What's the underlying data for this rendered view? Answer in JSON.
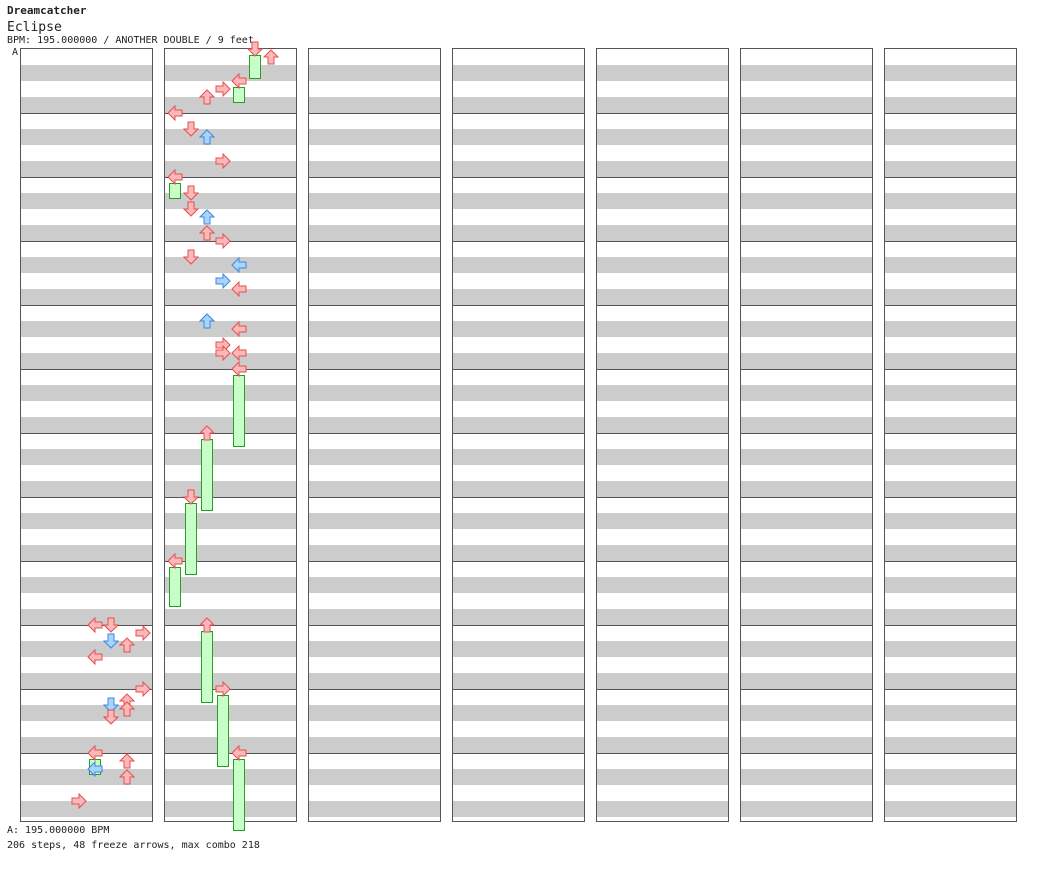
{
  "header": {
    "artist": "Dreamcatcher",
    "title": "Eclipse",
    "info": "BPM: 195.000000 / ANOTHER DOUBLE / 9 feet"
  },
  "section_marker": "A",
  "footer": {
    "bpm_line": "A: 195.000000 BPM",
    "stats_line": "206 steps, 48 freeze arrows, max combo 218"
  },
  "colors": {
    "red_fill": "#ffb8b8",
    "red_stroke": "#e05050",
    "blue_fill": "#a8d4ff",
    "blue_stroke": "#3a88d8",
    "freeze_fill": "#c8ffc8",
    "freeze_stroke": "#2a9a2a",
    "stripe": "#cccccc",
    "border": "#555555"
  },
  "icons": {
    "arrow": "direction-arrow-icon",
    "freeze": "freeze-arrow-icon"
  },
  "chart_data": {
    "type": "step-chart",
    "mode": "ANOTHER DOUBLE",
    "lanes": [
      "P1-left",
      "P1-down",
      "P1-up",
      "P1-right",
      "P2-left",
      "P2-down",
      "P2-up",
      "P2-right"
    ],
    "columns": 7,
    "measures_per_column": 12,
    "steps": 206,
    "freeze_arrows": 48,
    "max_combo": 218,
    "notes": [
      {
        "m": 9,
        "b": 0.0,
        "lanes": [
          4,
          5
        ],
        "c": "r"
      },
      {
        "m": 9,
        "b": 0.5,
        "lanes": [
          7
        ],
        "c": "r"
      },
      {
        "m": 9,
        "b": 1.0,
        "lanes": [
          5
        ],
        "c": "b"
      },
      {
        "m": 9,
        "b": 1.25,
        "lanes": [
          6
        ],
        "c": "r"
      },
      {
        "m": 9,
        "b": 2.0,
        "lanes": [
          4
        ],
        "c": "r"
      },
      {
        "m": 10,
        "b": 0.0,
        "lanes": [
          7
        ],
        "c": "r"
      },
      {
        "m": 10,
        "b": 0.75,
        "lanes": [
          6
        ],
        "c": "r"
      },
      {
        "m": 10,
        "b": 1.0,
        "lanes": [
          5
        ],
        "c": "b"
      },
      {
        "m": 10,
        "b": 1.25,
        "lanes": [
          6
        ],
        "c": "r"
      },
      {
        "m": 10,
        "b": 1.75,
        "lanes": [
          5
        ],
        "c": "r"
      },
      {
        "m": 11,
        "b": 0.0,
        "lanes": [
          4
        ],
        "c": "r",
        "freeze": 1
      },
      {
        "m": 11,
        "b": 0.5,
        "lanes": [
          6
        ],
        "c": "r"
      },
      {
        "m": 11,
        "b": 1.0,
        "lanes": [
          4
        ],
        "c": "b"
      },
      {
        "m": 11,
        "b": 1.5,
        "lanes": [
          6
        ],
        "c": "r"
      },
      {
        "m": 11,
        "b": 3.0,
        "lanes": [
          3
        ],
        "c": "r"
      },
      {
        "m": 12,
        "b": 0.0,
        "lanes": [
          5
        ],
        "c": "r",
        "freeze": 1.5
      },
      {
        "m": 12,
        "b": 0.5,
        "lanes": [
          6
        ],
        "c": "r"
      },
      {
        "m": 12,
        "b": 2.0,
        "lanes": [
          4
        ],
        "c": "r",
        "freeze": 1
      },
      {
        "m": 12,
        "b": 2.5,
        "lanes": [
          3
        ],
        "c": "r"
      },
      {
        "m": 12,
        "b": 3.0,
        "lanes": [
          2
        ],
        "c": "r"
      },
      {
        "m": 13,
        "b": 0.0,
        "lanes": [
          0
        ],
        "c": "r"
      },
      {
        "m": 13,
        "b": 1.0,
        "lanes": [
          1
        ],
        "c": "r"
      },
      {
        "m": 13,
        "b": 1.5,
        "lanes": [
          2
        ],
        "c": "b"
      },
      {
        "m": 13,
        "b": 3.0,
        "lanes": [
          3
        ],
        "c": "r"
      },
      {
        "m": 14,
        "b": 0.0,
        "lanes": [
          0
        ],
        "c": "r",
        "freeze": 1
      },
      {
        "m": 14,
        "b": 1.0,
        "lanes": [
          1
        ],
        "c": "r"
      },
      {
        "m": 14,
        "b": 2.0,
        "lanes": [
          1
        ],
        "c": "r"
      },
      {
        "m": 14,
        "b": 2.5,
        "lanes": [
          2
        ],
        "c": "b"
      },
      {
        "m": 14,
        "b": 3.5,
        "lanes": [
          2
        ],
        "c": "r"
      },
      {
        "m": 15,
        "b": 0.0,
        "lanes": [
          3
        ],
        "c": "r"
      },
      {
        "m": 15,
        "b": 1.0,
        "lanes": [
          1
        ],
        "c": "r"
      },
      {
        "m": 15,
        "b": 1.5,
        "lanes": [
          4
        ],
        "c": "b"
      },
      {
        "m": 15,
        "b": 2.5,
        "lanes": [
          3
        ],
        "c": "b"
      },
      {
        "m": 15,
        "b": 3.0,
        "lanes": [
          4
        ],
        "c": "r"
      },
      {
        "m": 16,
        "b": 1.0,
        "lanes": [
          2
        ],
        "c": "b"
      },
      {
        "m": 16,
        "b": 1.5,
        "lanes": [
          4
        ],
        "c": "r"
      },
      {
        "m": 16,
        "b": 2.5,
        "lanes": [
          3
        ],
        "c": "r"
      },
      {
        "m": 16,
        "b": 3.0,
        "lanes": [
          3,
          4
        ],
        "c": "r"
      },
      {
        "m": 17,
        "b": 0.0,
        "lanes": [
          4
        ],
        "c": "r",
        "freeze": 4.5
      },
      {
        "m": 18,
        "b": 0.0,
        "lanes": [
          2
        ],
        "c": "r",
        "freeze": 4.5
      },
      {
        "m": 19,
        "b": 0.0,
        "lanes": [
          1
        ],
        "c": "r",
        "freeze": 4.5
      },
      {
        "m": 20,
        "b": 0.0,
        "lanes": [
          0
        ],
        "c": "r",
        "freeze": 2.5
      },
      {
        "m": 21,
        "b": 0.0,
        "lanes": [
          2
        ],
        "c": "r",
        "freeze": 4.5
      },
      {
        "m": 22,
        "b": 0.0,
        "lanes": [
          3
        ],
        "c": "r",
        "freeze": 4.5
      },
      {
        "m": 23,
        "b": 0.0,
        "lanes": [
          4
        ],
        "c": "r",
        "freeze": 4.5
      }
    ]
  }
}
